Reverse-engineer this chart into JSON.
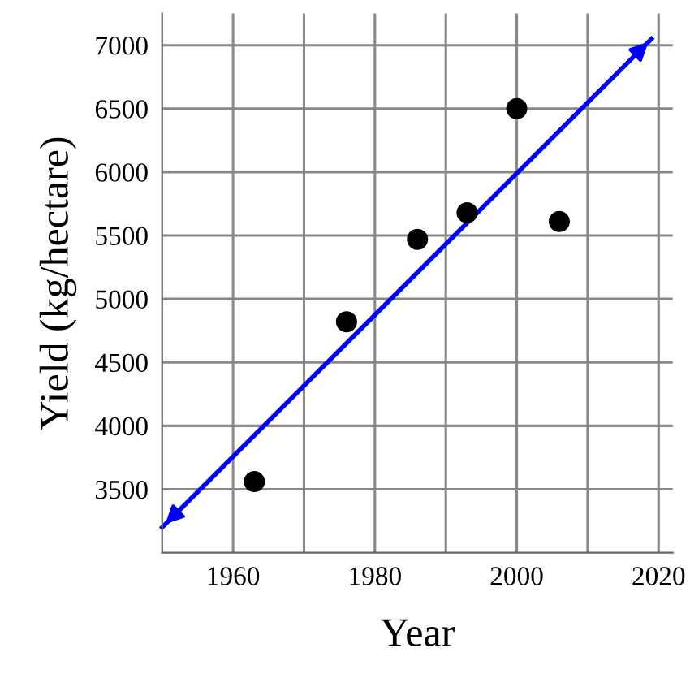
{
  "chart_data": {
    "type": "scatter",
    "xlabel": "Year",
    "ylabel": "Yield (kg/hectare)",
    "xlim": [
      1950,
      2022
    ],
    "ylim": [
      3000,
      7250
    ],
    "xticks": [
      1960,
      {
        "value": 1970,
        "label": null
      },
      1980,
      {
        "value": 1990,
        "label": null
      },
      2000,
      {
        "value": 2010,
        "label": null
      },
      2020
    ],
    "yticks": [
      3500,
      4000,
      4500,
      5000,
      5500,
      6000,
      6500,
      7000
    ],
    "grid": true,
    "series": [
      {
        "marker": "circle",
        "color": "#000000",
        "x": [
          1963,
          1976,
          1986,
          1993,
          2000,
          2006
        ],
        "values": [
          3560,
          4820,
          5470,
          5680,
          6500,
          5610
        ]
      },
      {
        "type": "line",
        "color": "#0000ee",
        "x": [
          1950,
          2019
        ],
        "values": [
          3200,
          7050
        ],
        "line_style": "solid"
      }
    ]
  }
}
